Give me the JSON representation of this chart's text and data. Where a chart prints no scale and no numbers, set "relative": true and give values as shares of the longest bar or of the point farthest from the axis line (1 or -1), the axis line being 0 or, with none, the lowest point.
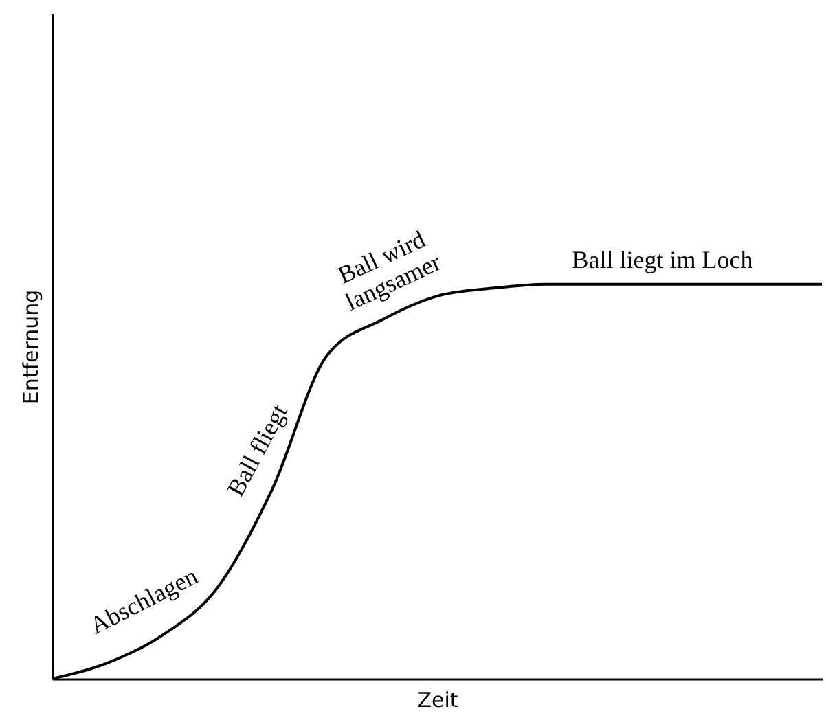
{
  "chart_data": {
    "type": "line",
    "xlabel": "Zeit",
    "ylabel": "Entfernung",
    "relative": true,
    "categories": [
      null,
      null,
      null,
      null,
      null,
      null,
      null,
      null,
      null,
      null,
      null,
      null,
      null,
      null,
      null
    ],
    "series": [
      {
        "color": "#000000",
        "values": [
          0,
          0.04,
          0.11,
          0.23,
          0.48,
          0.82,
          0.91,
          0.97,
          0.99,
          1,
          1,
          1,
          1,
          1,
          1
        ]
      }
    ],
    "annotations": [
      "Abschlagen",
      "Ball fliegt",
      "Ball wird langsamer",
      "Ball liegt im Loch"
    ]
  }
}
